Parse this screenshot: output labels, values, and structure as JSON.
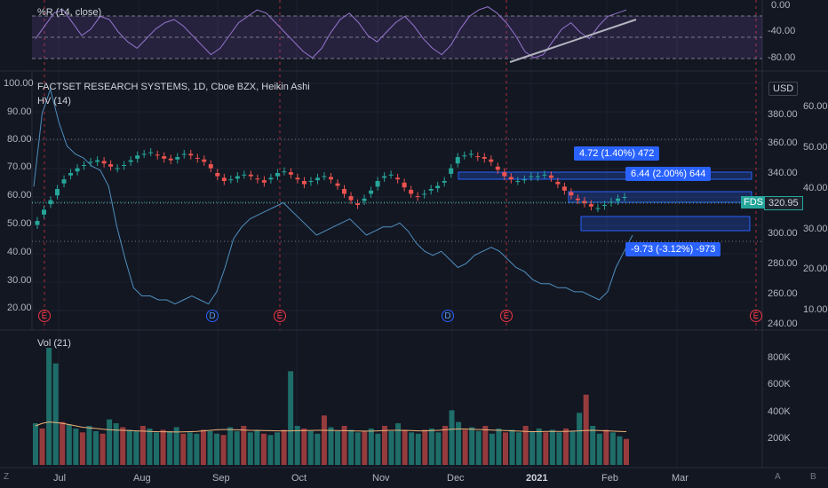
{
  "chart_data": [
    {
      "type": "line",
      "title": "%R (14, close)",
      "y_ticks": [
        "0.00",
        "-40.00",
        "-80.00"
      ],
      "ylim": [
        -100,
        0
      ],
      "values": [
        -55,
        -35,
        -15,
        -10,
        -30,
        -50,
        -40,
        -20,
        -25,
        -45,
        -60,
        -70,
        -55,
        -40,
        -30,
        -25,
        -35,
        -50,
        -65,
        -80,
        -70,
        -50,
        -30,
        -20,
        -10,
        -15,
        -30,
        -45,
        -60,
        -75,
        -85,
        -70,
        -45,
        -25,
        -15,
        -30,
        -50,
        -60,
        -45,
        -30,
        -20,
        -35,
        -55,
        -70,
        -80,
        -65,
        -40,
        -20,
        -10,
        -5,
        -15,
        -30,
        -50,
        -75,
        -85,
        -80,
        -60,
        -40,
        -30,
        -45,
        -55,
        -35,
        -20,
        -15,
        -10
      ]
    },
    {
      "type": "candlestick",
      "title": "FACTSET RESEARCH SYSTEMS, 1D, Cboe BZX, Heikin Ashi",
      "symbol": "FDS",
      "currency": "USD",
      "last_price": "320.95",
      "left_axis": [
        "100.00",
        "90.00",
        "80.00",
        "70.00",
        "60.00",
        "50.00",
        "40.00",
        "30.00",
        "20.00"
      ],
      "price_axis": [
        "380.00",
        "360.00",
        "340.00",
        "320.00",
        "300.00",
        "280.00",
        "260.00",
        "240.00"
      ],
      "hv_axis": [
        "60.00",
        "50.00",
        "40.00",
        "30.00",
        "20.00",
        "10.00"
      ],
      "ylim": [
        240,
        400
      ],
      "close_series": [
        305,
        312,
        318,
        325,
        331,
        335,
        338,
        340,
        342,
        343,
        341,
        339,
        338,
        340,
        343,
        346,
        347,
        348,
        346,
        344,
        343,
        345,
        347,
        346,
        344,
        342,
        338,
        333,
        330,
        331,
        333,
        334,
        333,
        331,
        329,
        332,
        335,
        336,
        334,
        331,
        328,
        330,
        332,
        333,
        331,
        327,
        322,
        318,
        315,
        319,
        324,
        330,
        333,
        334,
        331,
        326,
        322,
        320,
        322,
        325,
        327,
        330,
        338,
        345,
        346,
        347,
        345,
        344,
        342,
        337,
        333,
        331,
        330,
        331,
        333,
        333,
        334,
        332,
        328,
        324,
        321,
        318,
        316,
        314,
        313,
        315,
        317,
        319,
        320
      ],
      "hv_name": "HV (14)",
      "hv_values": [
        40,
        58,
        64,
        56,
        50,
        48,
        47,
        45,
        44,
        40,
        30,
        22,
        15,
        13,
        13,
        12,
        12,
        11,
        12,
        13,
        12,
        11,
        14,
        20,
        27,
        30,
        32,
        33,
        34,
        35,
        36,
        34,
        32,
        30,
        28,
        29,
        30,
        31,
        32,
        30,
        28,
        29,
        30,
        30,
        31,
        29,
        26,
        24,
        23,
        24,
        22,
        20,
        21,
        23,
        24,
        25,
        24,
        22,
        20,
        19,
        17,
        16,
        16,
        15,
        15,
        14,
        14,
        13,
        12,
        14,
        20,
        24,
        28
      ]
    },
    {
      "type": "bar",
      "title": "Vol (21)",
      "y_ticks": [
        "800K",
        "600K",
        "400K",
        "200K"
      ],
      "ylim": [
        0,
        900000
      ],
      "values": [
        320000,
        280000,
        900000,
        780000,
        330000,
        310000,
        280000,
        250000,
        300000,
        260000,
        240000,
        350000,
        320000,
        290000,
        270000,
        260000,
        300000,
        280000,
        250000,
        270000,
        260000,
        290000,
        240000,
        250000,
        240000,
        270000,
        260000,
        240000,
        230000,
        290000,
        260000,
        300000,
        250000,
        270000,
        240000,
        230000,
        250000,
        270000,
        720000,
        300000,
        280000,
        260000,
        240000,
        380000,
        290000,
        260000,
        300000,
        270000,
        250000,
        260000,
        280000,
        240000,
        300000,
        260000,
        320000,
        270000,
        250000,
        240000,
        270000,
        280000,
        250000,
        300000,
        420000,
        330000,
        270000,
        290000,
        260000,
        300000,
        240000,
        280000,
        250000,
        270000,
        250000,
        300000,
        260000,
        280000,
        250000,
        270000,
        250000,
        280000,
        260000,
        400000,
        540000,
        300000,
        240000,
        270000,
        250000,
        220000,
        200000
      ],
      "ma_values": [
        300000,
        320000,
        330000,
        325000,
        320000,
        310000,
        300000,
        290000,
        285000,
        280000,
        275000,
        270000,
        268000,
        266000,
        264000,
        262000,
        260000,
        258000,
        256000,
        255000,
        254000,
        253000,
        254000,
        256000,
        258000,
        262000,
        266000,
        270000,
        272000,
        272000,
        270000,
        268000,
        266000,
        265000,
        264000,
        263000,
        262000,
        262000,
        262000,
        263000,
        264000,
        265000,
        266000,
        266000,
        265000,
        264000,
        263000,
        262000,
        261000,
        260000,
        260000,
        262000,
        264000,
        266000,
        266000,
        265000,
        264000,
        262000,
        262000,
        264000,
        266000,
        270000,
        274000,
        276000,
        276000,
        274000,
        272000,
        270000,
        268000,
        266000,
        264000,
        262000,
        260000,
        258000,
        256000,
        256000,
        257000,
        258000,
        258000,
        258000,
        260000,
        262000,
        265000,
        266000,
        264000,
        262000,
        260000,
        258000,
        256000
      ]
    }
  ],
  "measurements": [
    {
      "label": "4.72 (1.40%) 472"
    },
    {
      "label": "6.44 (2.00%) 644"
    },
    {
      "label": "-9.73 (-3.12%) -973"
    }
  ],
  "event_markers": [
    {
      "kind": "E",
      "col": 0
    },
    {
      "kind": "D",
      "col": 1
    },
    {
      "kind": "E",
      "col": 2
    },
    {
      "kind": "D",
      "col": 3
    },
    {
      "kind": "E",
      "col": 4
    },
    {
      "kind": "E",
      "col": 5
    }
  ],
  "months": [
    "Jul",
    "Aug",
    "Sep",
    "Oct",
    "Nov",
    "Dec",
    "2021",
    "Feb",
    "Mar"
  ],
  "corner_labels": {
    "z": "Z",
    "a": "A",
    "b": "B"
  },
  "colors": {
    "up": "#26a69a",
    "down": "#ef5350",
    "hv": "#4f8fbf",
    "wr": "#9575cd",
    "vol_ma": "#f0b27a",
    "accent": "#2962ff",
    "bg": "#131722"
  }
}
